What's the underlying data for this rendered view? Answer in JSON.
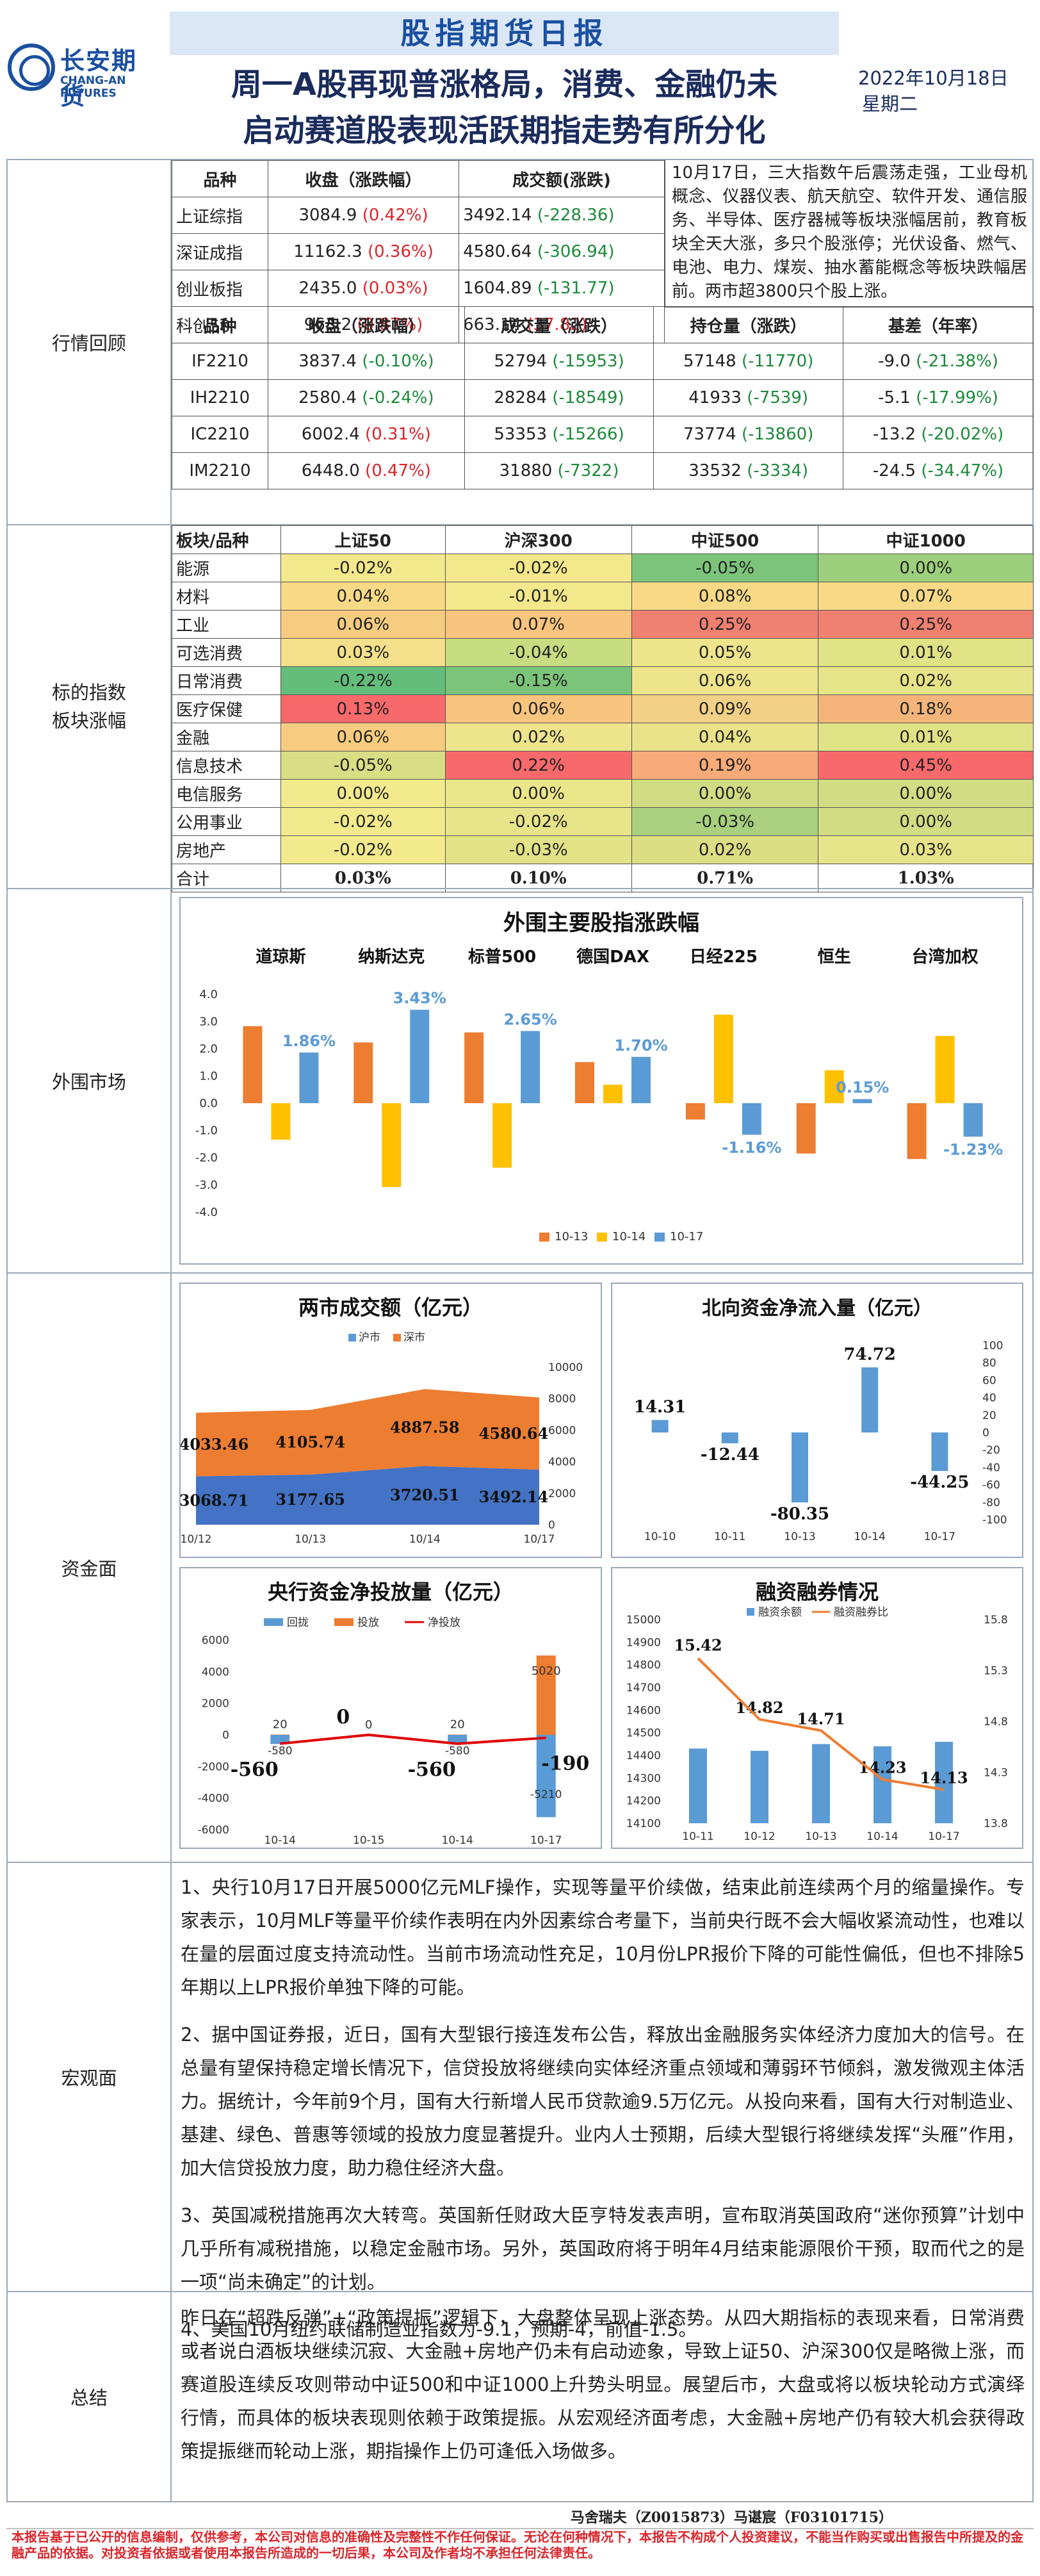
{
  "header": {
    "logo_cn": "长安期货",
    "logo_en": "CHANG-AN FUTURES",
    "banner": "股指期货日报",
    "headline_1": "周一A股再现普涨格局，消费、金融仍未",
    "headline_2": "启动赛道股表现活跃期指走势有所分化",
    "date": "2022年10月18日",
    "weekday": "星期二"
  },
  "market": {
    "label": "行情回顾",
    "index_headers": [
      "品种",
      "收盘（涨跌幅）",
      "成交额(涨跌)"
    ],
    "indices": [
      {
        "name": "上证综指",
        "close": "3084.9",
        "chg": "(0.42%)",
        "chg_color": "#d9262c",
        "vol": "3492.14",
        "vol_chg": "(-228.36)",
        "vol_color": "#1d8a3c"
      },
      {
        "name": "深证成指",
        "close": "11162.3",
        "chg": "(0.36%)",
        "chg_color": "#d9262c",
        "vol": "4580.64",
        "vol_chg": "(-306.94)",
        "vol_color": "#1d8a3c"
      },
      {
        "name": "创业板指",
        "close": "2435.0",
        "chg": "(0.03%)",
        "chg_color": "#d9262c",
        "vol": "1604.89",
        "vol_chg": "(-131.77)",
        "vol_color": "#1d8a3c"
      },
      {
        "name": "科创50",
        "close": "963.2",
        "chg": "(0.87%)",
        "chg_color": "#d9262c",
        "vol": "663.14",
        "vol_chg": "(37.82)",
        "vol_color": "#d9262c"
      }
    ],
    "comment": "10月17日，三大指数午后震荡走强，工业母机概念、仪器仪表、航天航空、软件开发、通信服务、半导体、医疗器械等板块涨幅居前，教育板块全天大涨，多只个股涨停；光伏设备、燃气、电池、电力、煤炭、抽水蓄能概念等板块跌幅居前。两市超3800只个股上涨。",
    "futures_headers": [
      "品种",
      "收盘（涨跌幅）",
      "成交量（涨跌）",
      "持仓量（涨跌）",
      "基差（年率）"
    ],
    "futures": [
      {
        "name": "IF2210",
        "close": "3837.4",
        "chg": "(-0.10%)",
        "chg_color": "#1d8a3c",
        "vol": "52794",
        "vol_chg": "(-15953)",
        "vol_color": "#1d8a3c",
        "oi": "57148",
        "oi_chg": "(-11770)",
        "oi_color": "#1d8a3c",
        "basis": "-9.0",
        "basis_rate": "(-21.38%)",
        "basis_color": "#1d8a3c"
      },
      {
        "name": "IH2210",
        "close": "2580.4",
        "chg": "(-0.24%)",
        "chg_color": "#1d8a3c",
        "vol": "28284",
        "vol_chg": "(-18549)",
        "vol_color": "#1d8a3c",
        "oi": "41933",
        "oi_chg": "(-7539)",
        "oi_color": "#1d8a3c",
        "basis": "-5.1",
        "basis_rate": "(-17.99%)",
        "basis_color": "#1d8a3c"
      },
      {
        "name": "IC2210",
        "close": "6002.4",
        "chg": "(0.31%)",
        "chg_color": "#d9262c",
        "vol": "53353",
        "vol_chg": "(-15266)",
        "vol_color": "#1d8a3c",
        "oi": "73774",
        "oi_chg": "(-13860)",
        "oi_color": "#1d8a3c",
        "basis": "-13.2",
        "basis_rate": "(-20.02%)",
        "basis_color": "#1d8a3c"
      },
      {
        "name": "IM2210",
        "close": "6448.0",
        "chg": "(0.47%)",
        "chg_color": "#d9262c",
        "vol": "31880",
        "vol_chg": "(-7322)",
        "vol_color": "#1d8a3c",
        "oi": "33532",
        "oi_chg": "(-3334)",
        "oi_color": "#1d8a3c",
        "basis": "-24.5",
        "basis_rate": "(-34.47%)",
        "basis_color": "#1d8a3c"
      }
    ]
  },
  "sectors": {
    "label": "标的指数\n板块涨幅",
    "headers": [
      "板块/品种",
      "上证50",
      "沪深300",
      "中证500",
      "中证1000"
    ],
    "rows": [
      {
        "name": "能源",
        "vals": [
          "-0.02%",
          "-0.02%",
          "-0.05%",
          "0.00%"
        ],
        "bg": [
          "#f4e88c",
          "#f4e88c",
          "#7cc47a",
          "#9cd07c"
        ]
      },
      {
        "name": "材料",
        "vals": [
          "0.04%",
          "-0.01%",
          "0.08%",
          "0.07%"
        ],
        "bg": [
          "#f8d986",
          "#f4e88c",
          "#f8d986",
          "#f8d986"
        ]
      },
      {
        "name": "工业",
        "vals": [
          "0.06%",
          "0.07%",
          "0.25%",
          "0.25%"
        ],
        "bg": [
          "#f8cc80",
          "#f8c47e",
          "#f08070",
          "#f08070"
        ]
      },
      {
        "name": "可选消费",
        "vals": [
          "0.03%",
          "-0.04%",
          "0.05%",
          "0.01%"
        ],
        "bg": [
          "#f4e08a",
          "#c8dc80",
          "#eee48c",
          "#e0e286"
        ]
      },
      {
        "name": "日常消费",
        "vals": [
          "-0.22%",
          "-0.15%",
          "0.06%",
          "0.02%"
        ],
        "bg": [
          "#63be7b",
          "#7cc47a",
          "#eee48c",
          "#e6e488"
        ]
      },
      {
        "name": "医疗保健",
        "vals": [
          "0.13%",
          "0.06%",
          "0.09%",
          "0.18%"
        ],
        "bg": [
          "#f8696b",
          "#f8c47e",
          "#f2d086",
          "#f4b47a"
        ]
      },
      {
        "name": "金融",
        "vals": [
          "0.06%",
          "0.02%",
          "0.04%",
          "0.01%"
        ],
        "bg": [
          "#f8cc80",
          "#eee48c",
          "#eae288",
          "#e0e286"
        ]
      },
      {
        "name": "信息技术",
        "vals": [
          "-0.05%",
          "0.22%",
          "0.19%",
          "0.45%"
        ],
        "bg": [
          "#d8de84",
          "#f8696b",
          "#f8aa78",
          "#f8696b"
        ]
      },
      {
        "name": "电信服务",
        "vals": [
          "0.00%",
          "0.00%",
          "0.00%",
          "0.00%"
        ],
        "bg": [
          "#f2ea8c",
          "#ece68a",
          "#d0dc82",
          "#d2dc82"
        ]
      },
      {
        "name": "公用事业",
        "vals": [
          "-0.02%",
          "-0.02%",
          "-0.03%",
          "0.00%"
        ],
        "bg": [
          "#f2ea8c",
          "#e8e48a",
          "#a8d07e",
          "#d2dc82"
        ]
      },
      {
        "name": "房地产",
        "vals": [
          "-0.02%",
          "-0.03%",
          "0.02%",
          "0.03%"
        ],
        "bg": [
          "#f2ea8c",
          "#e2e286",
          "#dcde84",
          "#e6e488"
        ]
      }
    ],
    "total_label": "合计",
    "totals": [
      "0.03%",
      "0.10%",
      "0.71%",
      "1.03%"
    ]
  },
  "overseas": {
    "label": "外围市场",
    "chart_data": {
      "type": "bar",
      "title": "外围主要股指涨跌幅",
      "categories": [
        "道琼斯",
        "纳斯达克",
        "标普500",
        "德国DAX",
        "日经225",
        "恒生",
        "台湾加权"
      ],
      "series": [
        {
          "name": "10-13",
          "color": "#ed7d31",
          "values": [
            2.83,
            2.23,
            2.6,
            1.51,
            -0.6,
            -1.85,
            -2.05
          ]
        },
        {
          "name": "10-14",
          "color": "#ffc000",
          "values": [
            -1.34,
            -3.08,
            -2.37,
            0.68,
            3.25,
            1.21,
            2.47
          ]
        },
        {
          "name": "10-17",
          "color": "#5b9bd5",
          "values": [
            1.86,
            3.43,
            2.65,
            1.7,
            -1.16,
            0.15,
            -1.23
          ]
        }
      ],
      "data_labels": [
        "1.86%",
        "3.43%",
        "2.65%",
        "1.70%",
        "-1.16%",
        "0.15%",
        "-1.23%"
      ],
      "y_ticks": [
        "4.0",
        "3.0",
        "2.0",
        "1.0",
        "0.0",
        "-1.0",
        "-2.0",
        "-3.0",
        "-4.0"
      ],
      "ylim": [
        -4,
        4
      ]
    }
  },
  "funds": {
    "label": "资金面",
    "turnover": {
      "type": "area",
      "title": "两市成交额（亿元）",
      "legend": [
        "沪市",
        "深市"
      ],
      "categories": [
        "10/12",
        "10/13",
        "10/14",
        "10/17"
      ],
      "sh": [
        3068.71,
        3177.65,
        3720.51,
        3492.14
      ],
      "sz": [
        4033.46,
        4105.74,
        4887.58,
        4580.64
      ],
      "sh_labels": [
        "3068.71",
        "3177.65",
        "3720.51",
        "3492.14"
      ],
      "sz_labels": [
        "4033.46",
        "4105.74",
        "4887.58",
        "4580.64"
      ],
      "y_ticks": [
        "10000",
        "8000",
        "6000",
        "4000",
        "2000",
        "0"
      ],
      "ylim": [
        0,
        10000
      ]
    },
    "northbound": {
      "type": "bar",
      "title": "北向资金净流入量（亿元）",
      "categories": [
        "10-10",
        "10-11",
        "10-13",
        "10-14",
        "10-17"
      ],
      "values": [
        14.31,
        -12.44,
        -80.35,
        74.72,
        -44.25
      ],
      "labels": [
        "14.31",
        "-12.44",
        "-80.35",
        "74.72",
        "-44.25"
      ],
      "y_ticks": [
        "100",
        "80",
        "60",
        "40",
        "20",
        "0",
        "-20",
        "-40",
        "-60",
        "-80",
        "-100"
      ],
      "ylim": [
        -100,
        100
      ]
    },
    "pboc": {
      "type": "bar",
      "title": "央行资金净投放量（亿元）",
      "legend": [
        "回拢",
        "投放",
        "净投放"
      ],
      "categories": [
        "10-14",
        "10-15",
        "10-14",
        "10-17"
      ],
      "withdraw": [
        -580,
        0,
        -580,
        -5210
      ],
      "inject": [
        20,
        0,
        20,
        5020
      ],
      "net": [
        -560,
        0,
        -560,
        -190
      ],
      "withdraw_labels": [
        "-580",
        "",
        "-580",
        "-5210"
      ],
      "inject_labels": [
        "20",
        "0",
        "20",
        "5020"
      ],
      "net_labels": [
        "-560",
        "0",
        "-560",
        "-190"
      ],
      "y_ticks": [
        "6000",
        "4000",
        "2000",
        "0",
        "-2000",
        "-4000",
        "-6000"
      ],
      "ylim": [
        -6000,
        6000
      ]
    },
    "margin": {
      "type": "bar",
      "title": "融资融券情况",
      "legend": [
        "融资余额",
        "融资融券比"
      ],
      "categories": [
        "10-11",
        "10-12",
        "10-13",
        "10-14",
        "10-17"
      ],
      "balance": [
        14430,
        14420,
        14450,
        14440,
        14460
      ],
      "ratio": [
        15.42,
        14.82,
        14.71,
        14.23,
        14.13
      ],
      "ratio_labels": [
        "15.42",
        "14.82",
        "14.71",
        "14.23",
        "14.13"
      ],
      "y_ticks": [
        "15000",
        "14900",
        "14800",
        "14700",
        "14600",
        "14500",
        "14400",
        "14300",
        "14200",
        "14100"
      ],
      "y2_ticks": [
        "15.8",
        "15.3",
        "14.8",
        "14.3",
        "13.8"
      ],
      "ylim": [
        14100,
        15000
      ],
      "y2lim": [
        13.8,
        15.8
      ]
    }
  },
  "macro": {
    "label": "宏观面",
    "paragraphs": [
      "1、央行10月17日开展5000亿元MLF操作，实现等量平价续做，结束此前连续两个月的缩量操作。专家表示，10月MLF等量平价续作表明在内外因素综合考量下，当前央行既不会大幅收紧流动性，也难以在量的层面过度支持流动性。当前市场流动性充足，10月份LPR报价下降的可能性偏低，但也不排除5年期以上LPR报价单独下降的可能。",
      "2、据中国证券报，近日，国有大型银行接连发布公告，释放出金融服务实体经济力度加大的信号。在总量有望保持稳定增长情况下，信贷投放将继续向实体经济重点领域和薄弱环节倾斜，激发微观主体活力。据统计，今年前9个月，国有大行新增人民币贷款逾9.5万亿元。从投向来看，国有大行对制造业、基建、绿色、普惠等领域的投放力度显著提升。业内人士预期，后续大型银行将继续发挥“头雁”作用，加大信贷投放力度，助力稳住经济大盘。",
      "3、英国减税措施再次大转弯。英国新任财政大臣亨特发表声明，宣布取消英国政府“迷你预算”计划中几乎所有减税措施，以稳定金融市场。另外，英国政府将于明年4月结束能源限价干预，取而代之的是一项“尚未确定”的计划。",
      "4、美国10月纽约联储制造业指数为-9.1，预期-4，前值-1.5。"
    ]
  },
  "summary": {
    "label": "总结",
    "text": "昨日在“超跌反弹”+“政策提振”逻辑下，大盘整体呈现上涨态势。从四大期指标的表现来看，日常消费或者说白酒板块继续沉寂、大金融+房地产仍未有启动迹象，导致上证50、沪深300仅是略微上涨，而赛道股连续反攻则带动中证500和中证1000上升势头明显。展望后市，大盘或将以板块轮动方式演绎行情，而具体的板块表现则依赖于政策提振。从宏观经济面考虑，大金融+房地产仍有较大机会获得政策提振继而轮动上涨，期指操作上仍可逢低入场做多。"
  },
  "footer": {
    "authors": "马舍瑞夫（Z0015873）马谌宸（F03101715）",
    "disclaimer": "本报告基于已公开的信息编制，仅供参考，本公司对信息的准确性及完整性不作任何保证。无论在何种情况下，本报告不构成个人投资建议，不能当作购买或出售报告中所提及的金融产品的依据。对投资者依据或者使用本报告所造成的一切后果，本公司及作者均不承担任何法律责任。"
  }
}
